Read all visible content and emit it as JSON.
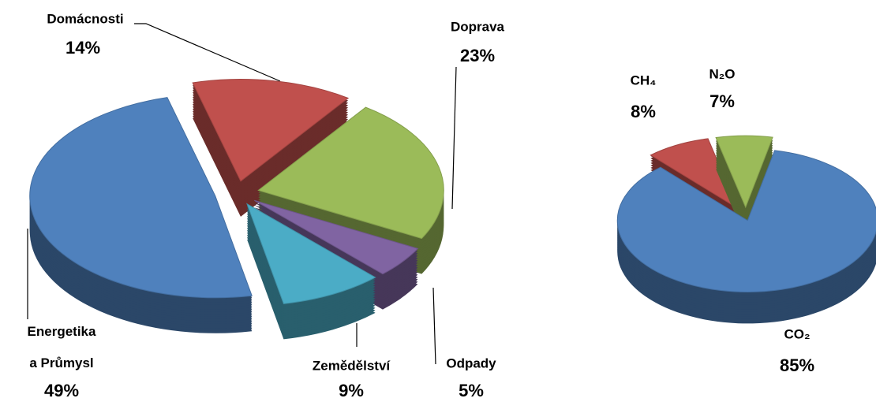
{
  "chart_data": [
    {
      "type": "pie",
      "categories": [
        "Domácnosti",
        "Doprava",
        "Odpady",
        "Zemědělství",
        "Energetika a Průmysl"
      ],
      "values": [
        14,
        23,
        5,
        9,
        49
      ],
      "value_labels": [
        "14%",
        "23%",
        "5%",
        "9%",
        "49%"
      ],
      "colors": [
        "#c0504d",
        "#9bbb59",
        "#8064a2",
        "#4bacc6",
        "#4f81bd"
      ]
    },
    {
      "type": "pie",
      "categories": [
        "CH₄",
        "N₂O",
        "CO₂"
      ],
      "values": [
        8,
        7,
        85
      ],
      "value_labels": [
        "8%",
        "7%",
        "85%"
      ],
      "colors": [
        "#c0504d",
        "#9bbb59",
        "#4f81bd"
      ]
    }
  ]
}
